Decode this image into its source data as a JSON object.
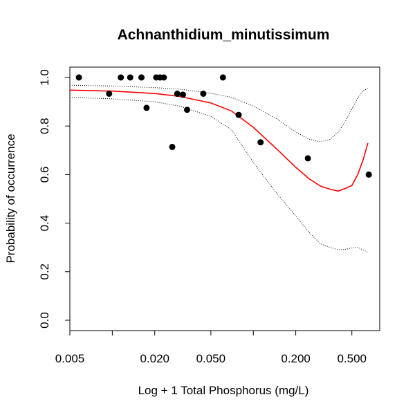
{
  "chart_data": {
    "type": "scatter",
    "title": "Achnanthidium_minutissimum",
    "xlabel": "Log + 1 Total Phosphorus (mg/L)",
    "ylabel": "Probability of occurrence",
    "x_scale": "log",
    "xlim": [
      0.005,
      0.72
    ],
    "ylim": [
      0,
      1
    ],
    "x_ticks": [
      {
        "value": 0.005,
        "label": "0.005"
      },
      {
        "value": 0.01,
        "label": ""
      },
      {
        "value": 0.02,
        "label": "0.020"
      },
      {
        "value": 0.05,
        "label": "0.050"
      },
      {
        "value": 0.1,
        "label": ""
      },
      {
        "value": 0.2,
        "label": "0.200"
      },
      {
        "value": 0.5,
        "label": "0.500"
      }
    ],
    "y_ticks": [
      {
        "value": 0.0,
        "label": "0.0"
      },
      {
        "value": 0.2,
        "label": "0.2"
      },
      {
        "value": 0.4,
        "label": "0.4"
      },
      {
        "value": 0.6,
        "label": "0.6"
      },
      {
        "value": 0.8,
        "label": "0.8"
      },
      {
        "value": 1.0,
        "label": "1.0"
      }
    ],
    "points": {
      "x": [
        0.0058,
        0.0095,
        0.0115,
        0.0134,
        0.0161,
        0.0175,
        0.0205,
        0.0218,
        0.0232,
        0.0266,
        0.0289,
        0.0317,
        0.0339,
        0.0442,
        0.0609,
        0.0787,
        0.1126,
        0.2436,
        0.6596
      ],
      "y": [
        1.0,
        0.933,
        1.0,
        1.0,
        1.0,
        0.875,
        1.0,
        1.0,
        1.0,
        0.714,
        0.933,
        0.929,
        0.867,
        0.933,
        1.0,
        0.846,
        0.733,
        0.667,
        0.6
      ]
    },
    "fit_line": {
      "color": "#ff0000",
      "x": [
        0.005,
        0.01,
        0.02,
        0.03,
        0.05,
        0.07,
        0.1,
        0.15,
        0.2,
        0.25,
        0.3,
        0.35,
        0.4,
        0.45,
        0.5,
        0.55,
        0.6,
        0.65
      ],
      "y": [
        0.948,
        0.944,
        0.934,
        0.922,
        0.895,
        0.862,
        0.795,
        0.7,
        0.63,
        0.582,
        0.552,
        0.54,
        0.532,
        0.543,
        0.555,
        0.6,
        0.66,
        0.73
      ]
    },
    "ci_upper": {
      "x": [
        0.005,
        0.01,
        0.02,
        0.03,
        0.05,
        0.07,
        0.1,
        0.15,
        0.2,
        0.25,
        0.3,
        0.35,
        0.4,
        0.45,
        0.5,
        0.55,
        0.6,
        0.65
      ],
      "y": [
        0.968,
        0.965,
        0.958,
        0.952,
        0.935,
        0.918,
        0.882,
        0.826,
        0.775,
        0.745,
        0.735,
        0.745,
        0.775,
        0.82,
        0.87,
        0.915,
        0.945,
        0.955
      ]
    },
    "ci_lower": {
      "x": [
        0.005,
        0.01,
        0.02,
        0.03,
        0.05,
        0.07,
        0.1,
        0.15,
        0.2,
        0.25,
        0.3,
        0.35,
        0.4,
        0.45,
        0.5,
        0.55,
        0.6,
        0.65
      ],
      "y": [
        0.918,
        0.912,
        0.9,
        0.882,
        0.84,
        0.785,
        0.65,
        0.515,
        0.43,
        0.36,
        0.315,
        0.3,
        0.29,
        0.292,
        0.298,
        0.3,
        0.29,
        0.28
      ]
    },
    "grid": false,
    "legend": "none"
  }
}
